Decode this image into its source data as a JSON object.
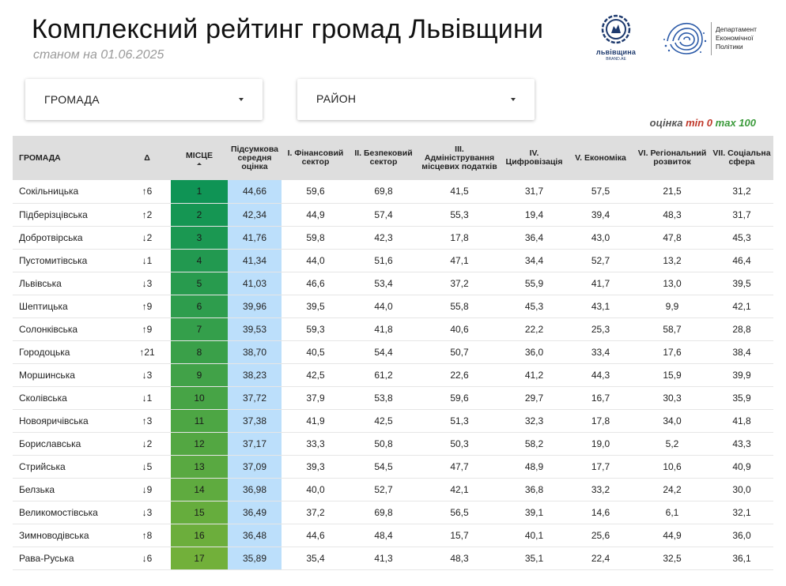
{
  "header": {
    "title": "Комплексний рейтинг громад Львівщини",
    "subtitle": "станом на 01.06.2025"
  },
  "logos": {
    "lviv_text": "львівщина",
    "lviv_sub": "BRAND.AE",
    "dept_lines": [
      "Департамент",
      "Економічної",
      "Політики"
    ],
    "colors": {
      "lviv_blue": "#1e3a6e",
      "dept_blue": "#2b5aa8"
    }
  },
  "filters": {
    "hromada_label": "ГРОМАДА",
    "rayon_label": "РАЙОН"
  },
  "legend": {
    "label": "оцінка",
    "min_label": "min 0",
    "max_label": "max 100",
    "colors": {
      "min": "#c0392b",
      "max": "#3a9a3a"
    }
  },
  "table": {
    "headers": {
      "name": "ГРОМАДА",
      "delta": "Δ",
      "rank": "МІСЦЕ",
      "avg": "Підсумкова середня оцінка",
      "c1": "I. Фінансовий сектор",
      "c2": "II. Безпековий сектор",
      "c3": "III. Адміністрування місцевих податків",
      "c4": "IV. Цифровізація",
      "c5": "V. Економіка",
      "c6": "VI. Регіональний розвиток",
      "c7": "VII. Соціальна сфера"
    },
    "colors": {
      "rank_dark": "#0f9455",
      "rank_light": "#72b03a",
      "avg_bg": "#bcdffb",
      "up": "#2e9a2e",
      "down": "#c0392b"
    },
    "rows": [
      {
        "name": "Сокільницька",
        "delta": "↑6",
        "dir": "up",
        "rank": "1",
        "avg": "44,66",
        "c1": "59,6",
        "c2": "69,8",
        "c3": "41,5",
        "c4": "31,7",
        "c5": "57,5",
        "c6": "21,5",
        "c7": "31,2"
      },
      {
        "name": "Підберізцівська",
        "delta": "↑2",
        "dir": "up",
        "rank": "2",
        "avg": "42,34",
        "c1": "44,9",
        "c2": "57,4",
        "c3": "55,3",
        "c4": "19,4",
        "c5": "39,4",
        "c6": "48,3",
        "c7": "31,7"
      },
      {
        "name": "Добротвірська",
        "delta": "↓2",
        "dir": "down",
        "rank": "3",
        "avg": "41,76",
        "c1": "59,8",
        "c2": "42,3",
        "c3": "17,8",
        "c4": "36,4",
        "c5": "43,0",
        "c6": "47,8",
        "c7": "45,3"
      },
      {
        "name": "Пустомитівська",
        "delta": "↓1",
        "dir": "down",
        "rank": "4",
        "avg": "41,34",
        "c1": "44,0",
        "c2": "51,6",
        "c3": "47,1",
        "c4": "34,4",
        "c5": "52,7",
        "c6": "13,2",
        "c7": "46,4"
      },
      {
        "name": "Львівська",
        "delta": "↓3",
        "dir": "down",
        "rank": "5",
        "avg": "41,03",
        "c1": "46,6",
        "c2": "53,4",
        "c3": "37,2",
        "c4": "55,9",
        "c5": "41,7",
        "c6": "13,0",
        "c7": "39,5"
      },
      {
        "name": "Шептицька",
        "delta": "↑9",
        "dir": "up",
        "rank": "6",
        "avg": "39,96",
        "c1": "39,5",
        "c2": "44,0",
        "c3": "55,8",
        "c4": "45,3",
        "c5": "43,1",
        "c6": "9,9",
        "c7": "42,1"
      },
      {
        "name": "Солонківська",
        "delta": "↑9",
        "dir": "up",
        "rank": "7",
        "avg": "39,53",
        "c1": "59,3",
        "c2": "41,8",
        "c3": "40,6",
        "c4": "22,2",
        "c5": "25,3",
        "c6": "58,7",
        "c7": "28,8"
      },
      {
        "name": "Городоцька",
        "delta": "↑21",
        "dir": "up",
        "rank": "8",
        "avg": "38,70",
        "c1": "40,5",
        "c2": "54,4",
        "c3": "50,7",
        "c4": "36,0",
        "c5": "33,4",
        "c6": "17,6",
        "c7": "38,4"
      },
      {
        "name": "Моршинська",
        "delta": "↓3",
        "dir": "down",
        "rank": "9",
        "avg": "38,23",
        "c1": "42,5",
        "c2": "61,2",
        "c3": "22,6",
        "c4": "41,2",
        "c5": "44,3",
        "c6": "15,9",
        "c7": "39,9"
      },
      {
        "name": "Сколівська",
        "delta": "↓1",
        "dir": "down",
        "rank": "10",
        "avg": "37,72",
        "c1": "37,9",
        "c2": "53,8",
        "c3": "59,6",
        "c4": "29,7",
        "c5": "16,7",
        "c6": "30,3",
        "c7": "35,9"
      },
      {
        "name": "Новояричівська",
        "delta": "↑3",
        "dir": "up",
        "rank": "11",
        "avg": "37,38",
        "c1": "41,9",
        "c2": "42,5",
        "c3": "51,3",
        "c4": "32,3",
        "c5": "17,8",
        "c6": "34,0",
        "c7": "41,8"
      },
      {
        "name": "Бориславська",
        "delta": "↓2",
        "dir": "down",
        "rank": "12",
        "avg": "37,17",
        "c1": "33,3",
        "c2": "50,8",
        "c3": "50,3",
        "c4": "58,2",
        "c5": "19,0",
        "c6": "5,2",
        "c7": "43,3"
      },
      {
        "name": "Стрийська",
        "delta": "↓5",
        "dir": "down",
        "rank": "13",
        "avg": "37,09",
        "c1": "39,3",
        "c2": "54,5",
        "c3": "47,7",
        "c4": "48,9",
        "c5": "17,7",
        "c6": "10,6",
        "c7": "40,9"
      },
      {
        "name": "Белзька",
        "delta": "↓9",
        "dir": "down",
        "rank": "14",
        "avg": "36,98",
        "c1": "40,0",
        "c2": "52,7",
        "c3": "42,1",
        "c4": "36,8",
        "c5": "33,2",
        "c6": "24,2",
        "c7": "30,0"
      },
      {
        "name": "Великомостівська",
        "delta": "↓3",
        "dir": "down",
        "rank": "15",
        "avg": "36,49",
        "c1": "37,2",
        "c2": "69,8",
        "c3": "56,5",
        "c4": "39,1",
        "c5": "14,6",
        "c6": "6,1",
        "c7": "32,1"
      },
      {
        "name": "Зимноводівська",
        "delta": "↑8",
        "dir": "up",
        "rank": "16",
        "avg": "36,48",
        "c1": "44,6",
        "c2": "48,4",
        "c3": "15,7",
        "c4": "40,1",
        "c5": "25,6",
        "c6": "44,9",
        "c7": "36,0"
      },
      {
        "name": "Рава-Руська",
        "delta": "↓6",
        "dir": "down",
        "rank": "17",
        "avg": "35,89",
        "c1": "35,4",
        "c2": "41,3",
        "c3": "48,3",
        "c4": "35,1",
        "c5": "22,4",
        "c6": "32,5",
        "c7": "36,1"
      }
    ]
  }
}
